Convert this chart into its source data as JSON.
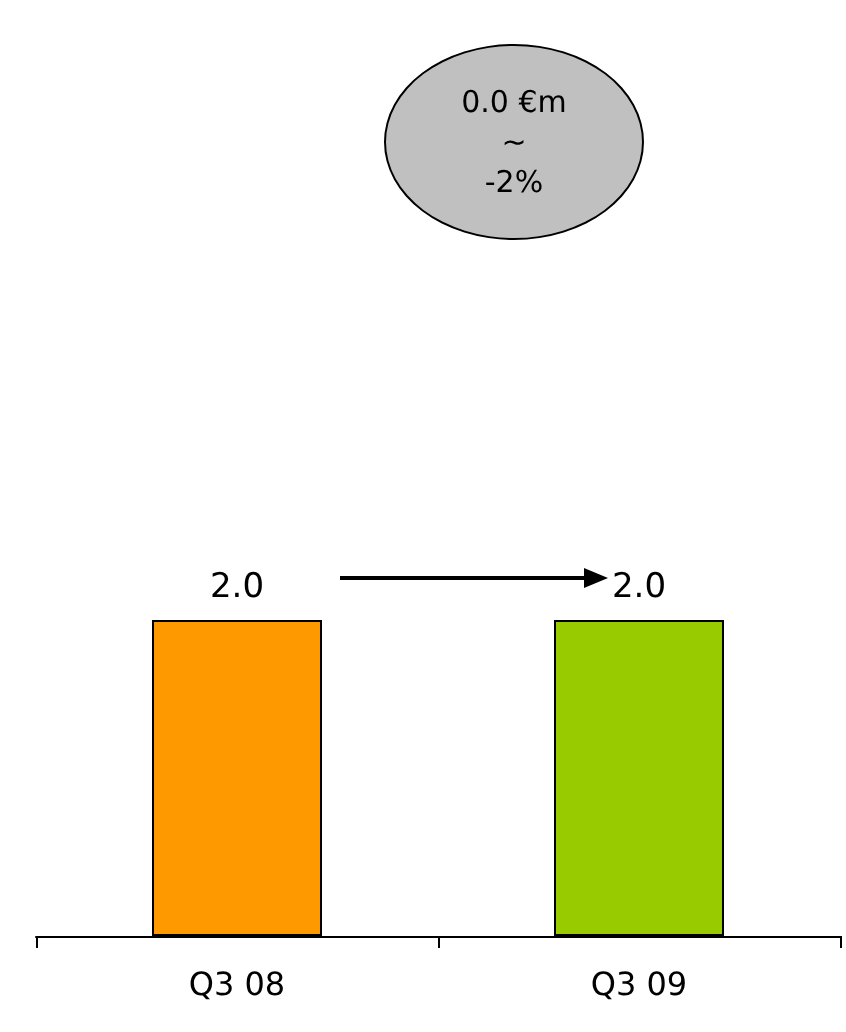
{
  "chart_data": {
    "type": "bar",
    "categories": [
      "Q3 08",
      "Q3 09"
    ],
    "colors": [
      "#ff9900",
      "#99cc00"
    ],
    "values": [
      2.0,
      2.0
    ],
    "value_labels": [
      "2.0",
      "2.0"
    ],
    "annotations": [
      "0.0 €m\n~\n-2%"
    ]
  }
}
